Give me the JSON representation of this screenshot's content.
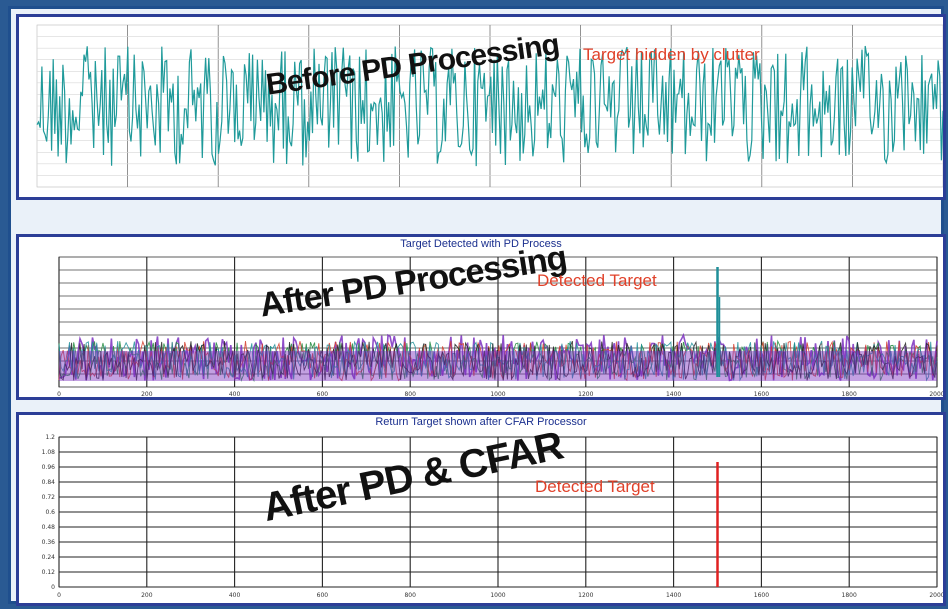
{
  "colors": {
    "background": "#2a5a93",
    "panel_border": "#2c3e97",
    "clutter": "#1f9a9a",
    "target_red": "#e0412a",
    "cfar_line": "#e02020",
    "title_blue": "#1a2f8e"
  },
  "panels": {
    "before": {
      "overlay": "Before PD Processing",
      "annotation": "Target hidden by clutter"
    },
    "after_pd": {
      "title": "Target Detected with PD Process",
      "overlay": "After PD Processing",
      "annotation": "Detected Target"
    },
    "after_cfar": {
      "title": "Return Target shown after CFAR Processor",
      "overlay": "After PD & CFAR",
      "annotation": "Detected Target"
    }
  },
  "chart_data": [
    {
      "type": "line",
      "title": "",
      "description_series": [
        {
          "name": "",
          "color": "#1f9a9a"
        }
      ],
      "noise_level": "high",
      "target_visible": false
    },
    {
      "type": "line",
      "title": "Target Detected with PD Process",
      "x_ticks": [
        "0",
        "200",
        "400",
        "600",
        "800",
        "1000",
        "1200",
        "1400",
        "1600",
        "1800",
        "2000"
      ],
      "xlim": [
        0,
        2000
      ],
      "grid": true,
      "series_colors": [
        "#7b2fbf",
        "#1e8a3c",
        "#d43b2a",
        "#1f8f99",
        "#222222"
      ],
      "target": {
        "x": 1500,
        "color": "#1f8f99"
      }
    },
    {
      "type": "line",
      "title": "Return Target shown after CFAR Processor",
      "x_ticks": [
        "0",
        "200",
        "400",
        "600",
        "800",
        "1000",
        "1200",
        "1400",
        "1600",
        "1800",
        "2000"
      ],
      "y_ticks": [
        "0",
        "0.12",
        "0.24",
        "0.36",
        "0.48",
        "0.6",
        "0.72",
        "0.84",
        "0.96",
        "1.08",
        "1.2"
      ],
      "xlim": [
        0,
        2000
      ],
      "ylim": [
        0,
        1.2
      ],
      "grid": true,
      "target": {
        "x": 1500,
        "value": 1.0
      }
    }
  ]
}
